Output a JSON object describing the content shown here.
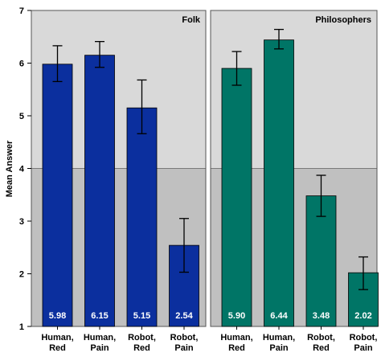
{
  "chart_data": {
    "type": "bar",
    "ylabel": "Mean Answer",
    "ylim": [
      1,
      7
    ],
    "yticks": [
      "1",
      "2",
      "3",
      "4",
      "5",
      "6",
      "7"
    ],
    "reference_line": 4,
    "categories": [
      [
        "Human,",
        "Red"
      ],
      [
        "Human,",
        "Pain"
      ],
      [
        "Robot,",
        "Red"
      ],
      [
        "Robot,",
        "Pain"
      ]
    ],
    "panels": [
      {
        "title": "Folk",
        "color": "#0b2f9e",
        "values": [
          5.98,
          6.15,
          5.15,
          2.54
        ],
        "labels": [
          "5.98",
          "6.15",
          "5.15",
          "2.54"
        ],
        "error_low": [
          5.65,
          5.92,
          4.66,
          2.03
        ],
        "error_high": [
          6.33,
          6.41,
          5.68,
          3.05
        ]
      },
      {
        "title": "Philosophers",
        "color": "#007566",
        "values": [
          5.9,
          6.44,
          3.48,
          2.02
        ],
        "labels": [
          "5.90",
          "6.44",
          "3.48",
          "2.02"
        ],
        "error_low": [
          5.58,
          6.27,
          3.09,
          1.7
        ],
        "error_high": [
          6.22,
          6.64,
          3.87,
          2.32
        ]
      }
    ]
  }
}
